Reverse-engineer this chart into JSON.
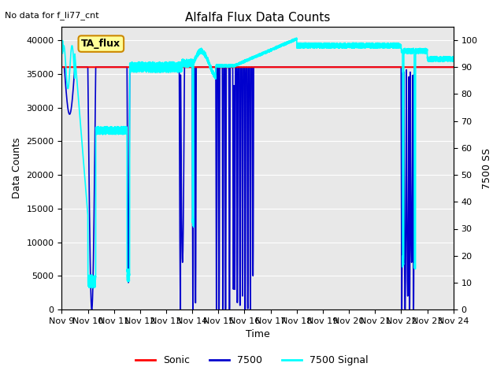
{
  "title": "Alfalfa Flux Data Counts",
  "subtitle": "No data for f_li77_cnt",
  "xlabel": "Time",
  "ylabel_left": "Data Counts",
  "ylabel_right": "7500 SS",
  "annotation": "TA_flux",
  "xlim": [
    0,
    15
  ],
  "ylim_left": [
    0,
    42000
  ],
  "ylim_right": [
    0,
    105
  ],
  "xtick_labels": [
    "Nov 9",
    "Nov 10",
    "Nov 11",
    "Nov 12",
    "Nov 13",
    "Nov 14",
    "Nov 15",
    "Nov 16",
    "Nov 17",
    "Nov 18",
    "Nov 19",
    "Nov 20",
    "Nov 21",
    "Nov 22",
    "Nov 23",
    "Nov 24"
  ],
  "ytick_left": [
    0,
    5000,
    10000,
    15000,
    20000,
    25000,
    30000,
    35000,
    40000
  ],
  "ytick_right": [
    0,
    10,
    20,
    30,
    40,
    50,
    60,
    70,
    80,
    90,
    100
  ],
  "bg_color": "#e8e8e8",
  "fig_bg": "#ffffff",
  "sonic_color": "#ff0000",
  "sonic_lw": 1.5,
  "s7500_color": "#0000cd",
  "s7500_lw": 1.2,
  "signal_color": "#00ffff",
  "signal_lw": 1.2,
  "legend_labels": [
    "Sonic",
    "7500",
    "7500 Signal"
  ]
}
